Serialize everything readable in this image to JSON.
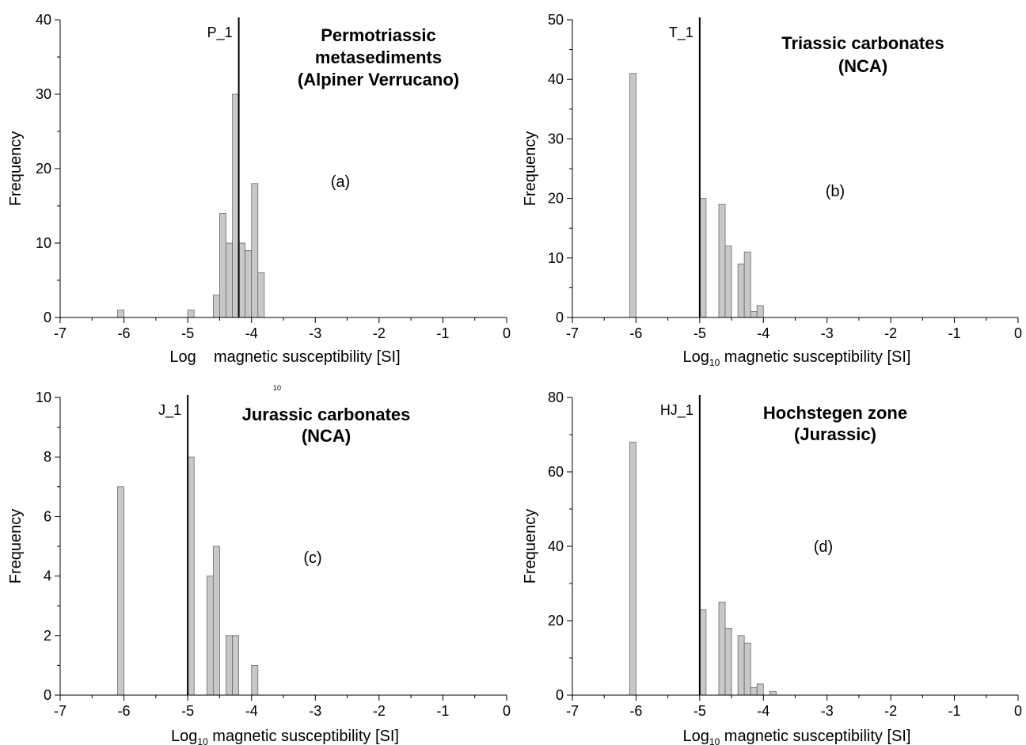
{
  "figure": {
    "stray_label": "10"
  },
  "chart_data": [
    {
      "type": "bar",
      "title_lines": [
        "Permotriassic",
        "metasediments",
        "(Alpiner Verrucano)"
      ],
      "panel_label": "(a)",
      "ylabel": "Frequency",
      "xlabel": "Log    magnetic susceptibility [SI]",
      "xlim": [
        -7,
        0
      ],
      "ylim": [
        0,
        40
      ],
      "xticks": [
        -7,
        -6,
        -5,
        -4,
        -3,
        -2,
        -1,
        0
      ],
      "yticks": [
        0,
        10,
        20,
        30,
        40
      ],
      "marker": {
        "label": "P_1",
        "x": -4.2
      },
      "x": [
        -6.1,
        -5.0,
        -4.6,
        -4.5,
        -4.4,
        -4.3,
        -4.2,
        -4.1,
        -4.0,
        -3.9
      ],
      "values": [
        1,
        1,
        3,
        14,
        10,
        30,
        10,
        9,
        18,
        6
      ],
      "bar_color": "#c8c8c8"
    },
    {
      "type": "bar",
      "title_lines": [
        "Triassic carbonates",
        "(NCA)"
      ],
      "panel_label": "(b)",
      "ylabel": "Frequency",
      "xlabel": "Log10 magnetic susceptibility [SI]",
      "xlabel_main": "Log",
      "xlabel_sub": "10",
      "xlabel_rest": " magnetic susceptibility [SI]",
      "xlim": [
        -7,
        0
      ],
      "ylim": [
        0,
        50
      ],
      "xticks": [
        -7,
        -6,
        -5,
        -4,
        -3,
        -2,
        -1,
        0
      ],
      "yticks": [
        0,
        10,
        20,
        30,
        40,
        50
      ],
      "marker": {
        "label": "T_1",
        "x": -5.0
      },
      "x": [
        -6.1,
        -5.0,
        -4.7,
        -4.6,
        -4.4,
        -4.3,
        -4.2,
        -4.1
      ],
      "values": [
        41,
        20,
        19,
        12,
        9,
        11,
        1,
        2
      ],
      "bar_color": "#c8c8c8"
    },
    {
      "type": "bar",
      "title_lines": [
        "Jurassic carbonates",
        "(NCA)"
      ],
      "panel_label": "(c)",
      "ylabel": "Frequency",
      "xlabel": "Log10 magnetic susceptibility [SI]",
      "xlabel_main": "Log",
      "xlabel_sub": "10",
      "xlabel_rest": " magnetic susceptibility [SI]",
      "xlim": [
        -7,
        0
      ],
      "ylim": [
        0,
        10
      ],
      "xticks": [
        -7,
        -6,
        -5,
        -4,
        -3,
        -2,
        -1,
        0
      ],
      "yticks": [
        0,
        2,
        4,
        6,
        8,
        10
      ],
      "marker": {
        "label": "J_1",
        "x": -5.0
      },
      "x": [
        -6.1,
        -5.0,
        -4.7,
        -4.6,
        -4.4,
        -4.3,
        -4.0
      ],
      "values": [
        7,
        8,
        4,
        5,
        2,
        2,
        1
      ],
      "bar_color": "#c8c8c8"
    },
    {
      "type": "bar",
      "title_lines": [
        "Hochstegen zone",
        "(Jurassic)"
      ],
      "panel_label": "(d)",
      "ylabel": "Frequency",
      "xlabel": "Log10 magnetic susceptibility [SI]",
      "xlabel_main": "Log",
      "xlabel_sub": "10",
      "xlabel_rest": " magnetic susceptibility [SI]",
      "xlim": [
        -7,
        0
      ],
      "ylim": [
        0,
        80
      ],
      "xticks": [
        -7,
        -6,
        -5,
        -4,
        -3,
        -2,
        -1,
        0
      ],
      "yticks": [
        0,
        20,
        40,
        60,
        80
      ],
      "marker": {
        "label": "HJ_1",
        "x": -5.0
      },
      "x": [
        -6.1,
        -5.0,
        -4.7,
        -4.6,
        -4.4,
        -4.3,
        -4.2,
        -4.1,
        -3.9
      ],
      "values": [
        68,
        23,
        25,
        18,
        16,
        14,
        2,
        3,
        1
      ],
      "bar_color": "#c8c8c8"
    }
  ]
}
